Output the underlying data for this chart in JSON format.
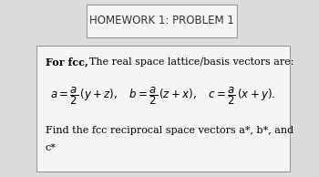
{
  "background_color": "#dcdcdc",
  "box_bg_color": "#f5f5f5",
  "title_box_bg": "#f5f5f5",
  "title_text": "HOMEWORK 1: PROBLEM 1",
  "title_fontsize": 8.5,
  "line1_bold": "For fcc,",
  "line1_rest": "  The real space lattice/basis vectors are:",
  "line1_fontsize": 8,
  "math_line": "$a = \\dfrac{a}{2}\\,(y+z),\\quad b = \\dfrac{a}{2}\\,(z+x),\\quad c = \\dfrac{a}{2}\\,(x+y).$",
  "math_fontsize": 8.5,
  "line3": "Find the fcc reciprocal space vectors a*, b*, and",
  "line4": "c*",
  "line34_fontsize": 8
}
